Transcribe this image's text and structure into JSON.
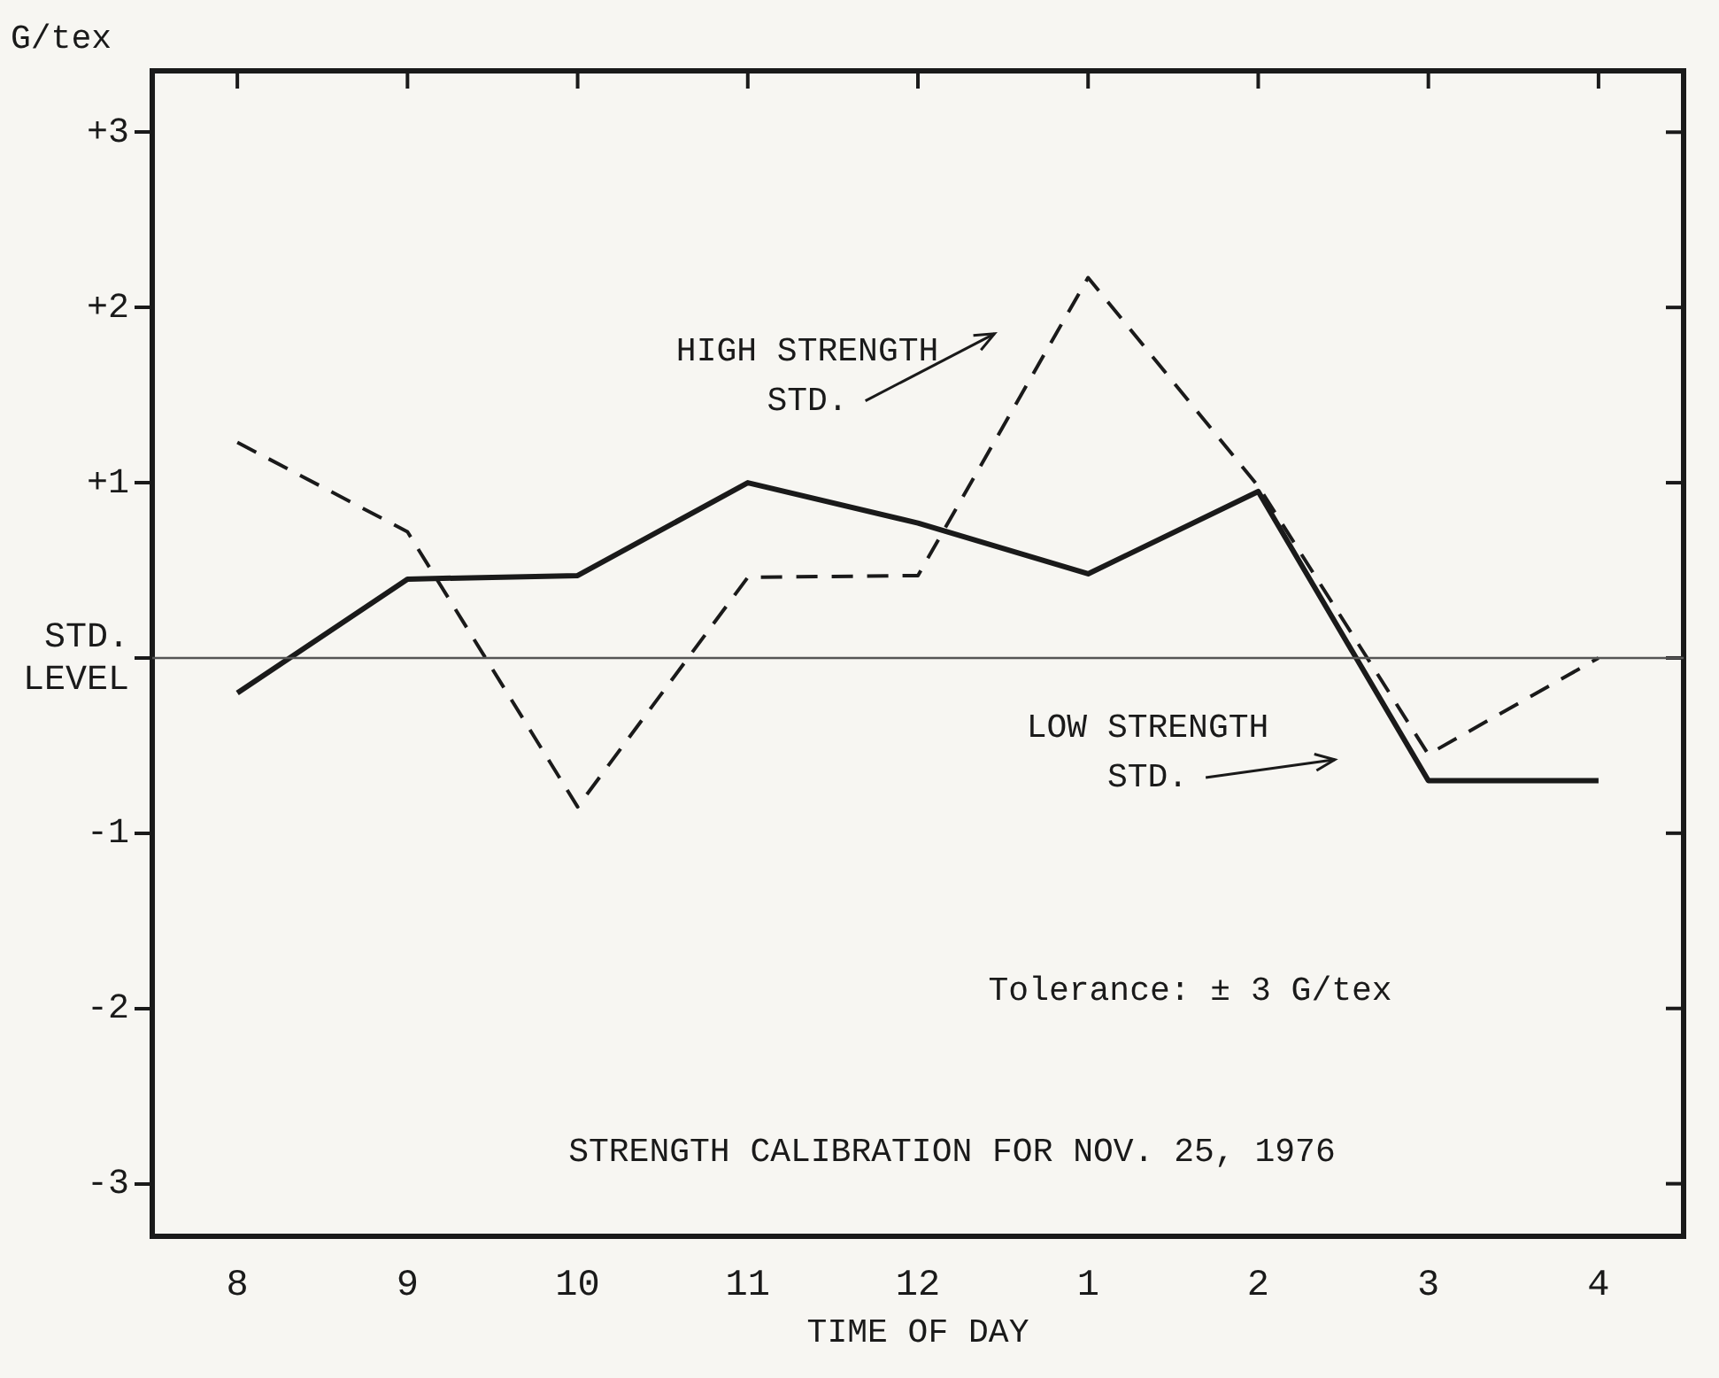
{
  "chart_data": {
    "type": "line",
    "xlabel": "TIME OF DAY",
    "ylabel": "G/tex",
    "categories": [
      "8",
      "9",
      "10",
      "11",
      "12",
      "1",
      "2",
      "3",
      "4"
    ],
    "series": [
      {
        "color": "#1a1a1a",
        "line_style": "solid",
        "values": [
          -0.2,
          0.45,
          0.47,
          1.0,
          0.77,
          0.48,
          0.95,
          -0.7,
          -0.7
        ]
      },
      {
        "color": "#1a1a1a",
        "line_style": "dashed",
        "values": [
          1.23,
          0.72,
          -0.85,
          0.46,
          0.47,
          2.17,
          0.98,
          -0.55,
          0
        ]
      }
    ],
    "ylim": [
      -3.3,
      3.35
    ],
    "yticks": [
      {
        "value": -3,
        "label": "-3"
      },
      {
        "value": -2,
        "label": "-2"
      },
      {
        "value": -1,
        "label": "-1"
      },
      {
        "value": 0,
        "label": "STD. LEVEL"
      },
      {
        "value": 1,
        "label": "+1"
      },
      {
        "value": 2,
        "label": "+2"
      },
      {
        "value": 3,
        "label": "+3"
      }
    ],
    "ref_lines": [
      {
        "axis": "y",
        "value": 0,
        "color": "#555555"
      }
    ],
    "annotations": [
      "HIGH STRENGTH STD.",
      "LOW STRENGTH STD.",
      "Tolerance: ± 3 G/tex",
      "STRENGTH CALIBRATION FOR NOV. 25, 1976"
    ],
    "marker": "none",
    "grid": false,
    "legend": false
  }
}
